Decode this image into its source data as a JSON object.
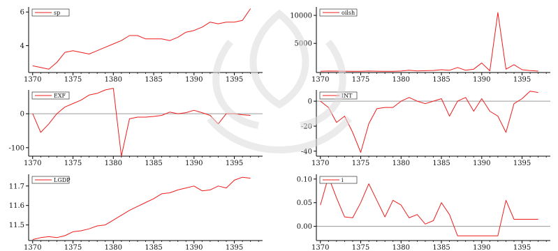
{
  "colors": {
    "series": "#ee1c1c",
    "axis": "#000000",
    "zero": "#9a9a9a",
    "watermark": "#dcdcdc"
  },
  "chart_data": [
    {
      "type": "line",
      "legend": "sp",
      "legend_position": "top-left",
      "grid": false,
      "x": [
        1370,
        1371,
        1372,
        1373,
        1374,
        1375,
        1376,
        1377,
        1378,
        1379,
        1380,
        1381,
        1382,
        1383,
        1384,
        1385,
        1386,
        1387,
        1388,
        1389,
        1390,
        1391,
        1392,
        1393,
        1394,
        1395,
        1396,
        1397
      ],
      "values": [
        2.8,
        2.7,
        2.6,
        3.0,
        3.6,
        3.7,
        3.6,
        3.5,
        3.7,
        3.9,
        4.1,
        4.3,
        4.6,
        4.6,
        4.4,
        4.4,
        4.4,
        4.3,
        4.5,
        4.8,
        4.9,
        5.1,
        5.4,
        5.3,
        5.4,
        5.4,
        5.5,
        6.2
      ],
      "xlim": [
        1369.5,
        1398.5
      ],
      "ylim": [
        2.4,
        6.3
      ],
      "xticks": [
        "1370",
        "1375",
        "1380",
        "1385",
        "1390",
        "1395"
      ],
      "yticks": [
        {
          "value": 4,
          "label": "4"
        },
        {
          "value": 6,
          "label": "6"
        }
      ]
    },
    {
      "type": "line",
      "legend": "oilsh",
      "legend_position": "top-left",
      "grid": false,
      "x": [
        1370,
        1371,
        1372,
        1373,
        1374,
        1375,
        1376,
        1377,
        1378,
        1379,
        1380,
        1381,
        1382,
        1383,
        1384,
        1385,
        1386,
        1387,
        1388,
        1389,
        1390,
        1391,
        1392,
        1393,
        1394,
        1395,
        1396,
        1397
      ],
      "values": [
        30,
        60,
        50,
        40,
        30,
        20,
        60,
        40,
        20,
        20,
        60,
        200,
        80,
        120,
        160,
        300,
        200,
        700,
        200,
        400,
        1500,
        100,
        10500,
        400,
        1200,
        300,
        150,
        50
      ],
      "xlim": [
        1369.5,
        1398.5
      ],
      "ylim": [
        -200,
        11500
      ],
      "xticks": [
        "1370",
        "1375",
        "1380",
        "1385",
        "1390",
        "1395"
      ],
      "yticks": [
        {
          "value": 5000,
          "label": "5000"
        },
        {
          "value": 10000,
          "label": "10000"
        }
      ]
    },
    {
      "type": "line",
      "legend": "EXF",
      "legend_position": "top-left",
      "grid": false,
      "zero_line": true,
      "x": [
        1370,
        1371,
        1372,
        1373,
        1374,
        1375,
        1376,
        1377,
        1378,
        1379,
        1380,
        1381,
        1382,
        1383,
        1384,
        1385,
        1386,
        1387,
        1388,
        1389,
        1390,
        1391,
        1392,
        1393,
        1394,
        1395,
        1396,
        1397
      ],
      "values": [
        0,
        -55,
        -30,
        0,
        20,
        30,
        40,
        55,
        60,
        70,
        75,
        -125,
        -15,
        -10,
        -10,
        -8,
        -5,
        5,
        0,
        3,
        10,
        3,
        -5,
        -30,
        0,
        0,
        -3,
        -5
      ],
      "xlim": [
        1369.5,
        1398.5
      ],
      "ylim": [
        -125,
        70
      ],
      "xticks": [
        "1370",
        "1375",
        "1380",
        "1385",
        "1390",
        "1395"
      ],
      "yticks": [
        {
          "value": -100,
          "label": "-100"
        },
        {
          "value": 0,
          "label": "0"
        }
      ]
    },
    {
      "type": "line",
      "legend": "INT",
      "legend_position": "top-left",
      "grid": false,
      "zero_line": true,
      "x": [
        1370,
        1371,
        1372,
        1373,
        1374,
        1375,
        1376,
        1377,
        1378,
        1379,
        1380,
        1381,
        1382,
        1383,
        1384,
        1385,
        1386,
        1387,
        1388,
        1389,
        1390,
        1391,
        1392,
        1393,
        1394,
        1395,
        1396,
        1397
      ],
      "values": [
        0,
        -5,
        -17,
        -12,
        -25,
        -41,
        -18,
        -6,
        -5,
        -5,
        0,
        3,
        0,
        -2,
        0,
        2,
        -12,
        0,
        3,
        -8,
        2,
        -8,
        -12,
        -25,
        -2,
        2,
        8,
        7
      ],
      "xlim": [
        1369.5,
        1398.5
      ],
      "ylim": [
        -44,
        9
      ],
      "xticks": [
        "1370",
        "1375",
        "1380",
        "1385",
        "1390",
        "1395"
      ],
      "yticks": [
        {
          "value": -40,
          "label": "-40"
        },
        {
          "value": -20,
          "label": "-20"
        },
        {
          "value": 0,
          "label": "0"
        }
      ]
    },
    {
      "type": "line",
      "legend": "LGDP",
      "legend_position": "top-left",
      "grid": false,
      "x": [
        1370,
        1371,
        1372,
        1373,
        1374,
        1375,
        1376,
        1377,
        1378,
        1379,
        1380,
        1381,
        1382,
        1383,
        1384,
        1385,
        1386,
        1387,
        1388,
        1389,
        1390,
        1391,
        1392,
        1393,
        1394,
        1395,
        1396,
        1397
      ],
      "values": [
        11.425,
        11.435,
        11.44,
        11.435,
        11.445,
        11.465,
        11.47,
        11.48,
        11.495,
        11.5,
        11.525,
        11.55,
        11.575,
        11.595,
        11.615,
        11.635,
        11.66,
        11.665,
        11.68,
        11.69,
        11.7,
        11.675,
        11.68,
        11.7,
        11.69,
        11.73,
        11.745,
        11.74
      ],
      "xlim": [
        1369.5,
        1398.5
      ],
      "ylim": [
        11.42,
        11.76
      ],
      "xticks": [
        "1370",
        "1375",
        "1380",
        "1385",
        "1390",
        "1395"
      ],
      "yticks": [
        {
          "value": 11.5,
          "label": "11.5"
        },
        {
          "value": 11.6,
          "label": "11.6"
        },
        {
          "value": 11.7,
          "label": "11.7"
        }
      ]
    },
    {
      "type": "line",
      "legend": "i",
      "legend_position": "top-left",
      "grid": false,
      "zero_line": true,
      "x": [
        1370,
        1371,
        1372,
        1373,
        1374,
        1375,
        1376,
        1377,
        1378,
        1379,
        1380,
        1381,
        1382,
        1383,
        1384,
        1385,
        1386,
        1387,
        1388,
        1389,
        1390,
        1391,
        1392,
        1393,
        1394,
        1395,
        1396,
        1397
      ],
      "values": [
        0.045,
        0.105,
        0.06,
        0.02,
        0.018,
        0.05,
        0.09,
        0.055,
        0.02,
        0.055,
        0.045,
        0.018,
        0.025,
        0.005,
        0.012,
        0.05,
        0.025,
        -0.02,
        -0.02,
        -0.02,
        -0.02,
        -0.02,
        -0.02,
        0.055,
        0.015,
        0.015,
        0.015,
        0.015
      ],
      "xlim": [
        1369.5,
        1398.5
      ],
      "ylim": [
        -0.03,
        0.11
      ],
      "xticks": [
        "1370",
        "1375",
        "1380",
        "1385",
        "1390",
        "1395"
      ],
      "yticks": [
        {
          "value": 0.0,
          "label": "0.00"
        },
        {
          "value": 0.05,
          "label": "0.05"
        },
        {
          "value": 0.1,
          "label": "0.10"
        }
      ]
    }
  ]
}
